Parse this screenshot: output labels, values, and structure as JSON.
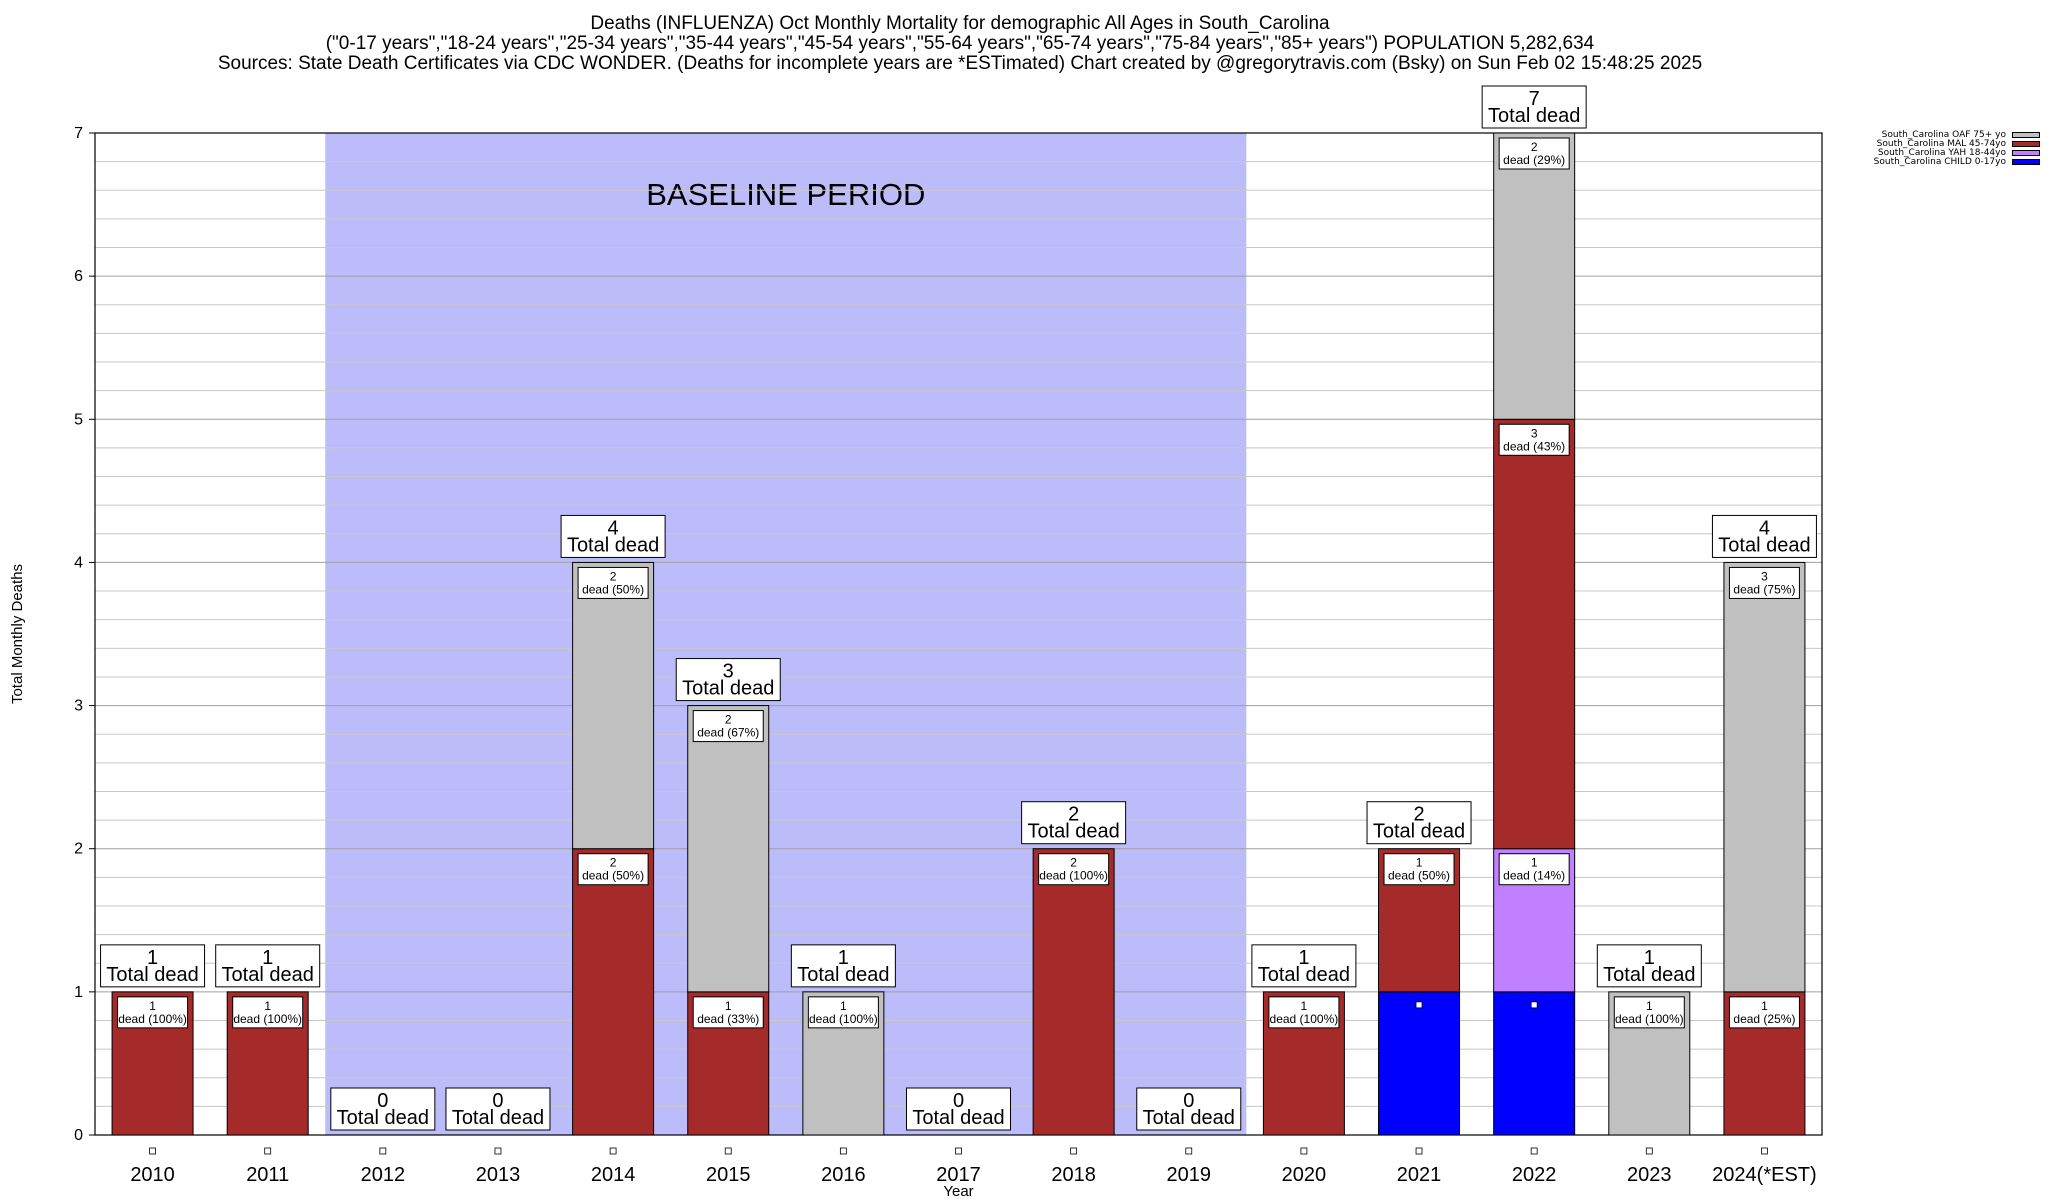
{
  "titles": {
    "line1": "Deaths (INFLUENZA) Oct Monthly Mortality for demographic All Ages in South_Carolina",
    "line2": "(\"0-17 years\",\"18-24 years\",\"25-34 years\",\"35-44 years\",\"45-54 years\",\"55-64 years\",\"65-74 years\",\"75-84 years\",\"85+ years\") POPULATION 5,282,634",
    "line3": "Sources: State Death Certificates via CDC WONDER. (Deaths for incomplete years are *ESTimated)                Chart created by @gregorytravis.com (Bsky) on Sun Feb 02 15:48:25 2025"
  },
  "chart_data": {
    "type": "bar",
    "stacked": true,
    "categories": [
      "2010",
      "2011",
      "2012",
      "2013",
      "2014",
      "2015",
      "2016",
      "2017",
      "2018",
      "2019",
      "2020",
      "2021",
      "2022",
      "2023",
      "2024(*EST)"
    ],
    "xlabel": "Year",
    "ylabel": "Total Monthly Deaths",
    "ylim": [
      0,
      7
    ],
    "yticks": [
      0,
      1,
      2,
      3,
      4,
      5,
      6,
      7
    ],
    "grid": true,
    "legend_position": "top-right",
    "baseline": {
      "label": "BASELINE PERIOD",
      "from": "2012",
      "to": "2019",
      "color": "#bcbcfa"
    },
    "series": [
      {
        "name": "South_Carolina CHILD 0-17yo",
        "color": "#0000ff",
        "values": [
          0,
          0,
          0,
          0,
          0,
          0,
          0,
          0,
          0,
          0,
          0,
          1,
          1,
          0,
          0
        ]
      },
      {
        "name": "South_Carolina YAH 18-44yo",
        "color": "#c080ff",
        "values": [
          0,
          0,
          0,
          0,
          0,
          0,
          0,
          0,
          0,
          0,
          0,
          0,
          1,
          0,
          0
        ]
      },
      {
        "name": "South_Carolina MAL 45-74yo",
        "color": "#a52a2a",
        "values": [
          1,
          1,
          0,
          0,
          2,
          1,
          0,
          0,
          2,
          0,
          1,
          1,
          3,
          0,
          1
        ]
      },
      {
        "name": "South_Carolina OAF 75+ yo",
        "color": "#c0c0c0",
        "values": [
          0,
          0,
          0,
          0,
          2,
          2,
          1,
          0,
          0,
          0,
          0,
          0,
          2,
          1,
          3
        ]
      }
    ],
    "totals": [
      1,
      1,
      0,
      0,
      4,
      3,
      1,
      0,
      2,
      0,
      1,
      2,
      7,
      1,
      4
    ],
    "total_label": "Total dead",
    "segment_labels": [
      {
        "cat": 0,
        "series": 2,
        "count": "1",
        "text": "dead (100%)"
      },
      {
        "cat": 1,
        "series": 2,
        "count": "1",
        "text": "dead (100%)"
      },
      {
        "cat": 4,
        "series": 2,
        "count": "2",
        "text": "dead (50%)"
      },
      {
        "cat": 4,
        "series": 3,
        "count": "2",
        "text": "dead (50%)"
      },
      {
        "cat": 5,
        "series": 2,
        "count": "1",
        "text": "dead (33%)"
      },
      {
        "cat": 5,
        "series": 3,
        "count": "2",
        "text": "dead (67%)"
      },
      {
        "cat": 6,
        "series": 3,
        "count": "1",
        "text": "dead (100%)"
      },
      {
        "cat": 8,
        "series": 2,
        "count": "2",
        "text": "dead (100%)"
      },
      {
        "cat": 10,
        "series": 2,
        "count": "1",
        "text": "dead (100%)"
      },
      {
        "cat": 11,
        "series": 2,
        "count": "1",
        "text": "dead (50%)"
      },
      {
        "cat": 12,
        "series": 1,
        "count": "1",
        "text": "dead (14%)"
      },
      {
        "cat": 12,
        "series": 2,
        "count": "3",
        "text": "dead (43%)"
      },
      {
        "cat": 12,
        "series": 3,
        "count": "2",
        "text": "dead (29%)"
      },
      {
        "cat": 13,
        "series": 3,
        "count": "1",
        "text": "dead (100%)"
      },
      {
        "cat": 14,
        "series": 2,
        "count": "1",
        "text": "dead (25%)"
      },
      {
        "cat": 14,
        "series": 3,
        "count": "3",
        "text": "dead (75%)"
      }
    ]
  }
}
